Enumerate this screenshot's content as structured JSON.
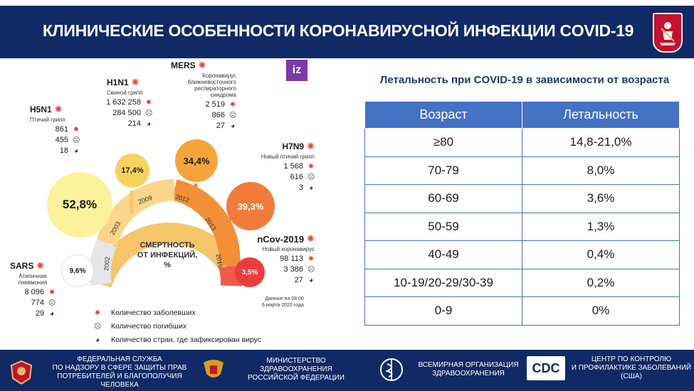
{
  "header": {
    "title": "КЛИНИЧЕСКИЕ ОСОБЕННОСТИ КОРОНАВИРУСНОЙ ИНФЕКЦИИ COVID-19"
  },
  "infographic": {
    "logo": "iz",
    "center": [
      "СМЕРТНОСТЬ",
      "ОТ ИНФЕКЦИЙ,",
      "%"
    ],
    "diseases": [
      {
        "name": "H5N1",
        "subtitle": "Птичий грипп",
        "cases": "861",
        "deaths": "455",
        "countries": "18"
      },
      {
        "name": "H1N1",
        "subtitle": "Свиной грипп",
        "cases": "1 632 258",
        "deaths": "284 500",
        "countries": "214"
      },
      {
        "name": "MERS",
        "subtitle": "Коронавирус ближневосточного респираторного синдрома",
        "cases": "2 519",
        "deaths": "866",
        "countries": "27"
      },
      {
        "name": "H7N9",
        "subtitle": "Новый птичий грипп",
        "cases": "1 568",
        "deaths": "616",
        "countries": "3"
      },
      {
        "name": "nCov-2019",
        "subtitle": "Новый коронавирус",
        "cases": "98 113",
        "deaths": "3 386",
        "countries": "27"
      },
      {
        "name": "SARS",
        "subtitle": "Атипичная пневмония",
        "cases": "8 096",
        "deaths": "774",
        "countries": "29"
      }
    ],
    "bubbles": [
      {
        "value": "52,8%",
        "year": "2003"
      },
      {
        "value": "17,4%",
        "year": "2009"
      },
      {
        "value": "34,4%",
        "year": "2012"
      },
      {
        "value": "39,3%",
        "year": "2013"
      },
      {
        "value": "3,5%",
        "year": "2019"
      },
      {
        "value": "9,6%",
        "year": "2002"
      }
    ],
    "legend": {
      "cases": "Количество заболевших",
      "deaths": "Количество погибших",
      "countries": "Количество стран, где зафиксирован вирус"
    },
    "note": [
      "Данные на 08:00",
      "6 марта 2020 года"
    ]
  },
  "table": {
    "title": "Летальность при COVID-19 в зависимости от возраста",
    "headers": [
      "Возраст",
      "Летальность"
    ],
    "rows": [
      [
        "≥80",
        "14,8-21,0%"
      ],
      [
        "70-79",
        "8,0%"
      ],
      [
        "60-69",
        "3,6%"
      ],
      [
        "50-59",
        "1,3%"
      ],
      [
        "40-49",
        "0,4%"
      ],
      [
        "10-19/20-29/30-39",
        "0,2%"
      ],
      [
        "0-9",
        "0%"
      ]
    ]
  },
  "footer": {
    "orgs": [
      [
        "ФЕДЕРАЛЬНАЯ СЛУЖБА",
        "ПО НАДЗОРУ В СФЕРЕ ЗАЩИТЫ ПРАВ",
        "ПОТРЕБИТЕЛЕЙ И БЛАГОПОЛУЧИЯ ЧЕЛОВЕКА"
      ],
      [
        "МИНИСТЕРСТВО ЗДРАВООХРАНЕНИЯ",
        "РОССИЙСКОЙ ФЕДЕРАЦИИ"
      ],
      [
        "ВСЕМИРНАЯ ОРГАНИЗАЦИЯ",
        "ЗДРАВООХРАНЕНИЯ"
      ],
      [
        "ЦЕНТР  ПО КОНТРОЛЮ",
        "И ПРОФИЛАКТИКЕ ЗАБОЛЕВАНИЙ",
        "(США)"
      ]
    ],
    "cdc_logo": "CDC"
  },
  "colors": {
    "navy": "#102a66",
    "table_header": "#4472c4",
    "accent_red": "#e8453c"
  }
}
